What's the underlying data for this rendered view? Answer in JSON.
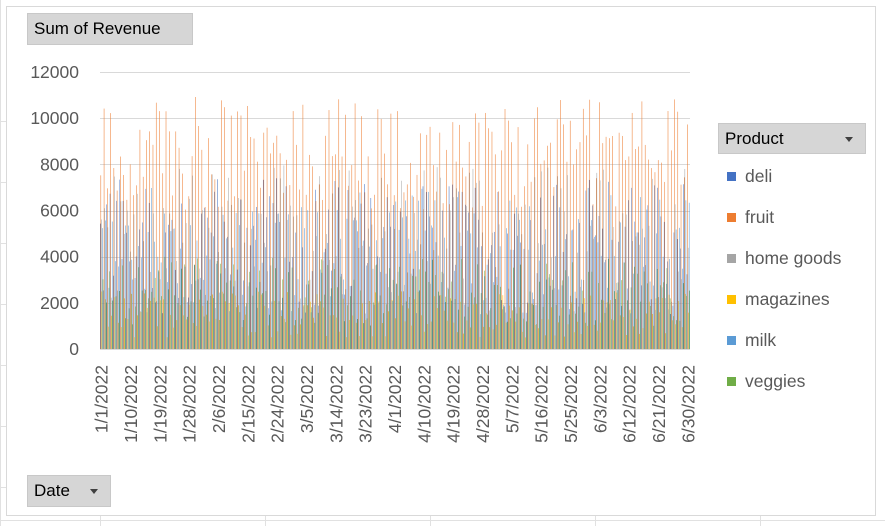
{
  "value_field": {
    "label": "Sum of Revenue"
  },
  "axis_field": {
    "label": "Date"
  },
  "legend_field": {
    "label": "Product"
  },
  "colors": {
    "deli": "#4472C4",
    "fruit": "#ED7D31",
    "home goods": "#A5A5A5",
    "magazines": "#FFC000",
    "milk": "#5B9BD5",
    "veggies": "#70AD47",
    "gridline": "#D9D9D9"
  },
  "chart_data": {
    "type": "bar",
    "title": "",
    "xlabel": "",
    "ylabel": "",
    "ylim": [
      0,
      12000
    ],
    "yticks": [
      0,
      2000,
      4000,
      6000,
      8000,
      10000,
      12000
    ],
    "grid": true,
    "legend_position": "right",
    "x_start": "1/1/2022",
    "x_end": "6/30/2022",
    "x_tick_labels": [
      "1/1/2022",
      "1/10/2022",
      "1/19/2022",
      "1/28/2022",
      "2/6/2022",
      "2/15/2022",
      "2/24/2022",
      "3/5/2022",
      "3/14/2022",
      "3/23/2022",
      "4/1/2022",
      "4/10/2022",
      "4/19/2022",
      "4/28/2022",
      "5/7/2022",
      "5/16/2022",
      "5/25/2022",
      "6/3/2022",
      "6/12/2022",
      "6/21/2022",
      "6/30/2022"
    ],
    "series": [
      {
        "name": "deli",
        "approx_range": [
          1500,
          7500
        ]
      },
      {
        "name": "fruit",
        "approx_range": [
          6000,
          11000
        ]
      },
      {
        "name": "home goods",
        "approx_range": [
          1500,
          8000
        ]
      },
      {
        "name": "magazines",
        "approx_range": [
          500,
          2500
        ]
      },
      {
        "name": "milk",
        "approx_range": [
          1500,
          7000
        ]
      },
      {
        "name": "veggies",
        "approx_range": [
          1000,
          4000
        ]
      }
    ]
  }
}
